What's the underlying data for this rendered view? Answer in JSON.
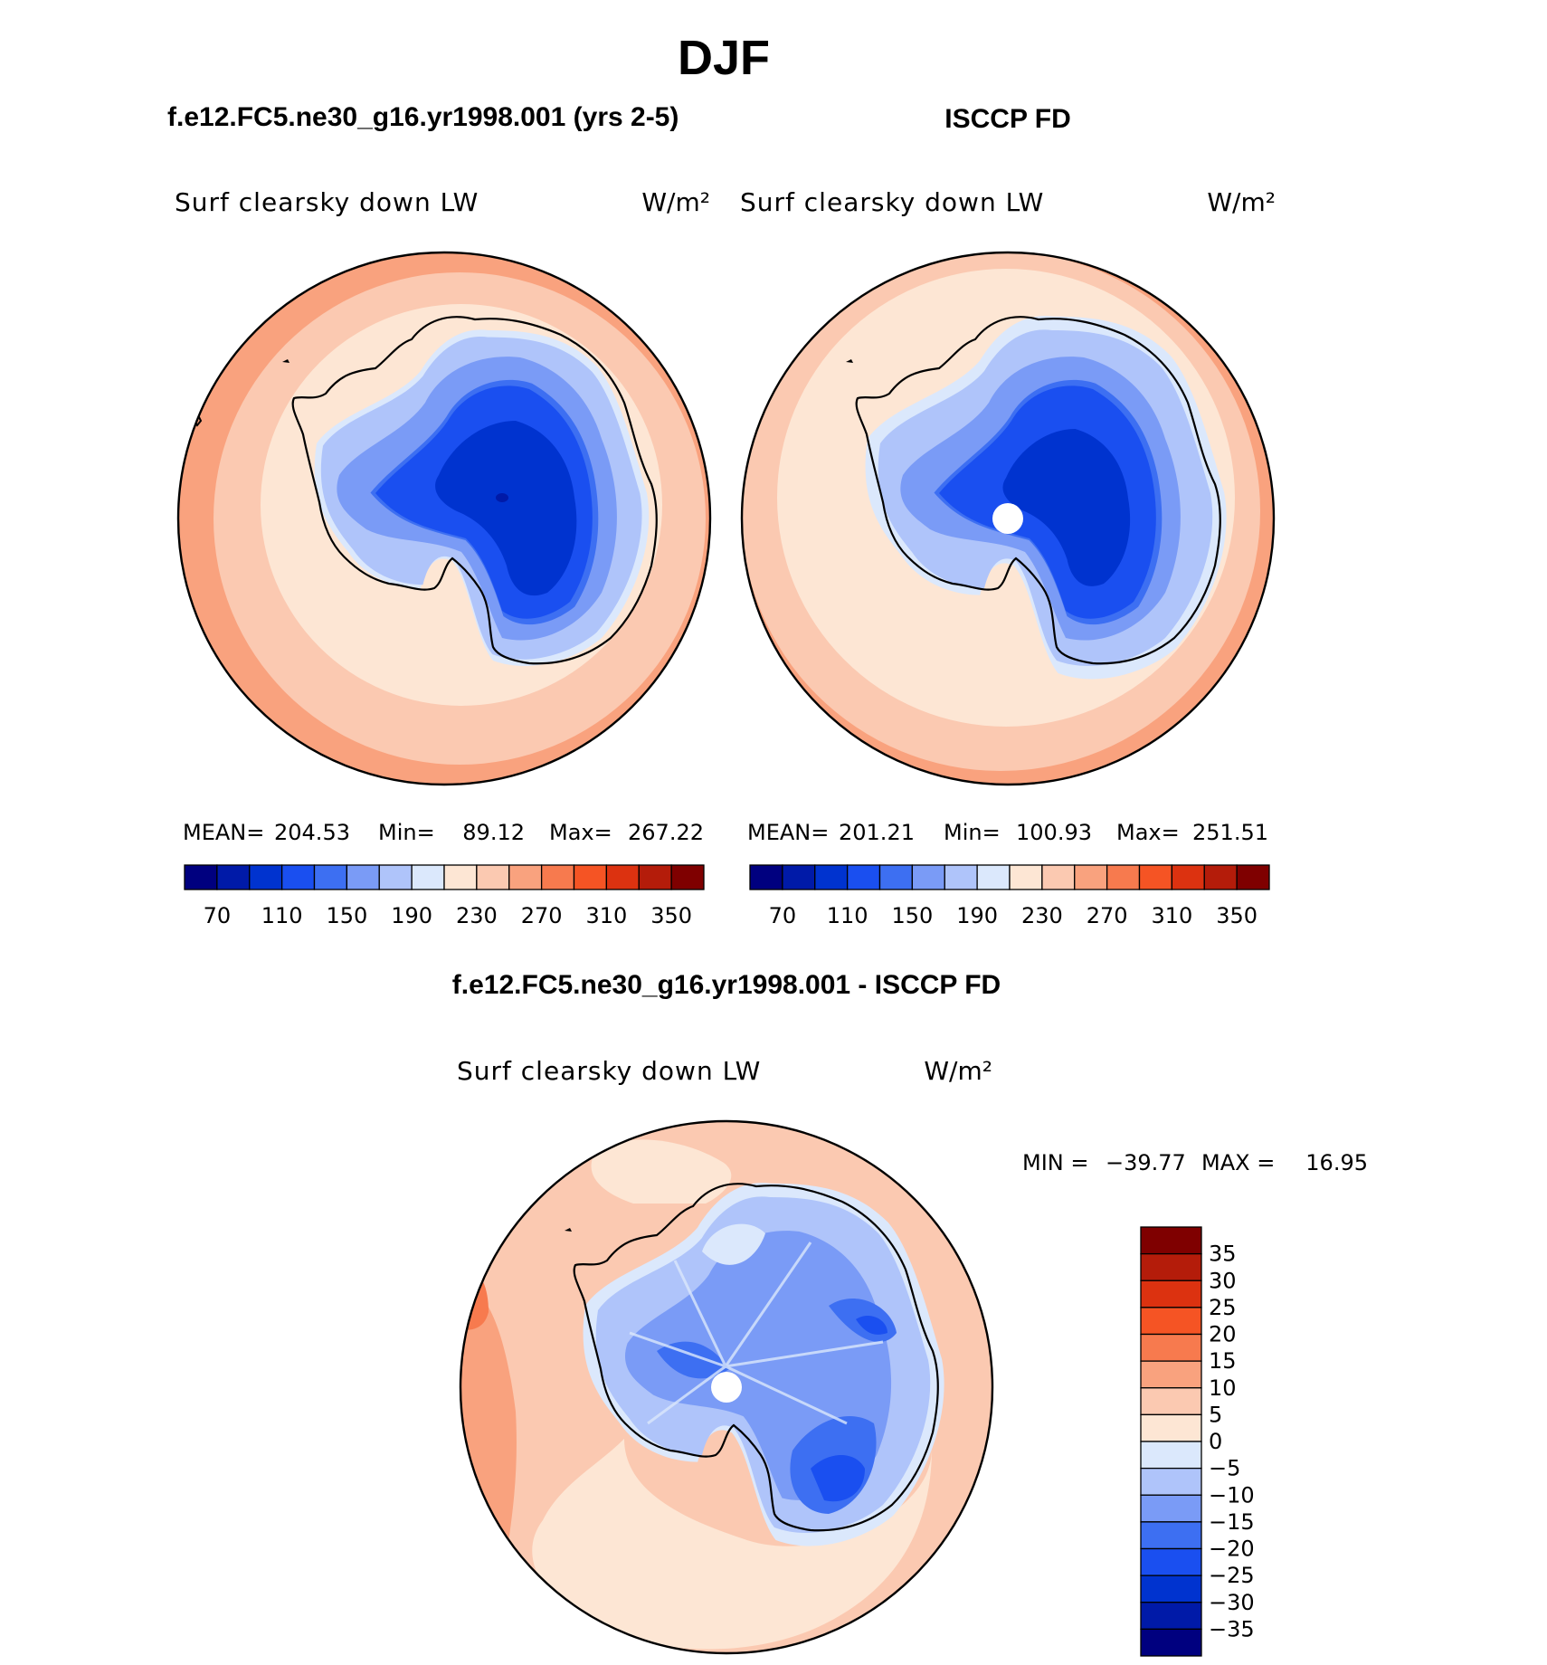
{
  "figure": {
    "title": "DJF",
    "subtitles": {
      "model": "f.e12.FC5.ne30_g16.yr1998.001 (yrs 2-5)",
      "obs": "ISCCP FD",
      "diff": "f.e12.FC5.ne30_g16.yr1998.001 - ISCCP FD"
    },
    "colors": {
      "coast": "#000000",
      "missing": "#ffffff"
    }
  },
  "chart_data": [
    {
      "type": "heatmap",
      "projection": "south-polar-stereographic",
      "panel": "model",
      "variable": "Surf clearsky down LW",
      "units": "W/m²",
      "stats": {
        "mean_label": "MEAN=",
        "mean": "204.53",
        "min_label": "Min=",
        "min": "89.12",
        "max_label": "Max=",
        "max": "267.22"
      },
      "colorbar": {
        "orientation": "horizontal",
        "levels": [
          70,
          90,
          110,
          130,
          150,
          170,
          190,
          210,
          230,
          250,
          270,
          290,
          310,
          330,
          350
        ],
        "tick_labels": [
          "70",
          "110",
          "150",
          "190",
          "230",
          "270",
          "310",
          "350"
        ],
        "colors": [
          "#00007f",
          "#001aa8",
          "#0033cf",
          "#1a4ff0",
          "#3d6ff2",
          "#7a9bf6",
          "#afc4fa",
          "#dbe8fc",
          "#fde6d4",
          "#fbc9b1",
          "#f9a27e",
          "#f77a4e",
          "#f55424",
          "#dc3210",
          "#b41c0a",
          "#7f0000"
        ]
      }
    },
    {
      "type": "heatmap",
      "projection": "south-polar-stereographic",
      "panel": "obs",
      "variable": "Surf clearsky down LW",
      "units": "W/m²",
      "stats": {
        "mean_label": "MEAN=",
        "mean": "201.21",
        "min_label": "Min=",
        "min": "100.93",
        "max_label": "Max=",
        "max": "251.51"
      },
      "colorbar": {
        "orientation": "horizontal",
        "levels": [
          70,
          90,
          110,
          130,
          150,
          170,
          190,
          210,
          230,
          250,
          270,
          290,
          310,
          330,
          350
        ],
        "tick_labels": [
          "70",
          "110",
          "150",
          "190",
          "230",
          "270",
          "310",
          "350"
        ],
        "colors": [
          "#00007f",
          "#001aa8",
          "#0033cf",
          "#1a4ff0",
          "#3d6ff2",
          "#7a9bf6",
          "#afc4fa",
          "#dbe8fc",
          "#fde6d4",
          "#fbc9b1",
          "#f9a27e",
          "#f77a4e",
          "#f55424",
          "#dc3210",
          "#b41c0a",
          "#7f0000"
        ]
      }
    },
    {
      "type": "heatmap",
      "projection": "south-polar-stereographic",
      "panel": "difference",
      "variable": "Surf clearsky down LW",
      "units": "W/m²",
      "stats": {
        "min_label": "MIN =",
        "min": "−39.77",
        "max_label": "MAX =",
        "max": "16.95"
      },
      "colorbar": {
        "orientation": "vertical",
        "levels": [
          -35,
          -30,
          -25,
          -20,
          -15,
          -10,
          -5,
          0,
          5,
          10,
          15,
          20,
          25,
          30,
          35
        ],
        "tick_labels": [
          "35",
          "30",
          "25",
          "20",
          "15",
          "10",
          "5",
          "0",
          "−5",
          "−10",
          "−15",
          "−20",
          "−25",
          "−30",
          "−35"
        ],
        "colors": [
          "#00007f",
          "#001aa8",
          "#0033cf",
          "#1a4ff0",
          "#3d6ff2",
          "#7a9bf6",
          "#afc4fa",
          "#dbe8fc",
          "#fde6d4",
          "#fbc9b1",
          "#f9a27e",
          "#f77a4e",
          "#f55424",
          "#dc3210",
          "#b41c0a",
          "#7f0000"
        ]
      }
    }
  ]
}
